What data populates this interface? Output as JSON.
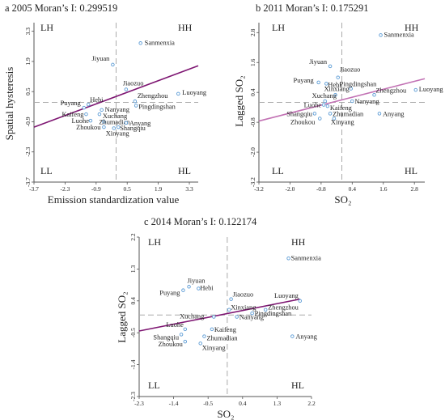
{
  "chart_data": [
    {
      "type": "scatter",
      "title": "a 2005  Moran’s I: 0.299519",
      "xlabel": "Emission standardization value",
      "ylabel": "Spatial hysteresis",
      "xlim": [
        -3.7,
        3.7
      ],
      "ylim": [
        -3.7,
        3.7
      ],
      "xticks": [
        "-3.7",
        "-2.3",
        "-0.9",
        "0.5",
        "1.9",
        "3.3"
      ],
      "yticks": [
        "3.3",
        "1.9",
        "0.5",
        "-0.9",
        "-2.3",
        "-3.7"
      ],
      "quadrants": {
        "top_left": "LH",
        "top_right": "HH",
        "bottom_left": "LL",
        "bottom_right": "HL"
      },
      "regression_line": {
        "x": [
          -3.7,
          3.7
        ],
        "y": [
          -1.15,
          1.7
        ]
      },
      "points": [
        {
          "label": "Sanmenxia",
          "x": 1.1,
          "y": 2.75
        },
        {
          "label": "Jiyuan",
          "x": -0.15,
          "y": 1.75
        },
        {
          "label": "Jiaozuo",
          "x": 0.45,
          "y": 0.6
        },
        {
          "label": "Luoyang",
          "x": 2.8,
          "y": 0.4
        },
        {
          "label": "Zhengzhou",
          "x": 0.85,
          "y": 0.05
        },
        {
          "label": "Pingdingshan",
          "x": 0.9,
          "y": -0.15
        },
        {
          "label": "Hebi",
          "x": -1.25,
          "y": -0.1
        },
        {
          "label": "Puyang",
          "x": -1.45,
          "y": -0.25
        },
        {
          "label": "Nanyang",
          "x": -0.65,
          "y": -0.35
        },
        {
          "label": "Kaifeng",
          "x": -1.35,
          "y": -0.55
        },
        {
          "label": "Xuchang",
          "x": -0.75,
          "y": -0.55
        },
        {
          "label": "Luohe",
          "x": -1.15,
          "y": -0.85
        },
        {
          "label": "Zhumadian",
          "x": -0.55,
          "y": -0.9
        },
        {
          "label": "Anyang",
          "x": 0.45,
          "y": -0.95
        },
        {
          "label": "Zhoukou",
          "x": -0.55,
          "y": -1.15
        },
        {
          "label": "Shangqiu",
          "x": 0.1,
          "y": -1.15
        },
        {
          "label": "Xinyang",
          "x": -0.1,
          "y": -1.2
        }
      ]
    },
    {
      "type": "scatter",
      "title": "b 2011  Moran’s I: 0.175291",
      "xlabel": "SO₂",
      "ylabel": "Lagged SO₂",
      "xlim": [
        -3.2,
        3.2
      ],
      "ylim": [
        -3.2,
        3.2
      ],
      "xticks": [
        "-3.2",
        "-2.0",
        "-0.8",
        "0.4",
        "1.6",
        "2.8"
      ],
      "yticks": [
        "2.8",
        "1.6",
        "0.4",
        "-0.8",
        "-2.0",
        "-3.2"
      ],
      "quadrants": {
        "top_left": "LH",
        "top_right": "HH",
        "bottom_left": "LL",
        "bottom_right": "HL"
      },
      "regression_line": {
        "x": [
          -3.2,
          3.2
        ],
        "y": [
          -0.75,
          0.95
        ]
      },
      "points": [
        {
          "label": "Sanmenxia",
          "x": 1.5,
          "y": 2.7
        },
        {
          "label": "Jiyuan",
          "x": -0.45,
          "y": 1.45
        },
        {
          "label": "Jiaozuo",
          "x": -0.15,
          "y": 1.0
        },
        {
          "label": "Puyang",
          "x": -0.9,
          "y": 0.8
        },
        {
          "label": "Hebi",
          "x": -0.6,
          "y": 0.75
        },
        {
          "label": "Pingdingshan",
          "x": 0.35,
          "y": 0.55
        },
        {
          "label": "Luoyang",
          "x": 2.85,
          "y": 0.5
        },
        {
          "label": "Zhengzhou",
          "x": 1.25,
          "y": 0.3
        },
        {
          "label": "Xinxiang",
          "x": -0.25,
          "y": 0.3
        },
        {
          "label": "Xuchang",
          "x": -0.65,
          "y": 0.05
        },
        {
          "label": "Nanyang",
          "x": 0.4,
          "y": 0.05
        },
        {
          "label": "Luohe",
          "x": -0.7,
          "y": -0.1
        },
        {
          "label": "Kaifeng",
          "x": -0.55,
          "y": -0.15
        },
        {
          "label": "Shangqiu",
          "x": -1.05,
          "y": -0.45
        },
        {
          "label": "Zhumadian",
          "x": -0.45,
          "y": -0.45
        },
        {
          "label": "Anyang",
          "x": 1.45,
          "y": -0.45
        },
        {
          "label": "Zhoukou",
          "x": -0.85,
          "y": -0.65
        },
        {
          "label": "Xinyang",
          "x": -0.3,
          "y": -0.65
        }
      ]
    },
    {
      "type": "scatter",
      "title": "c 2014  Moran’s I: 0.122174",
      "xlabel": "SO₂",
      "ylabel": "Lagged SO₂",
      "xlim": [
        -2.3,
        2.2
      ],
      "ylim": [
        -2.3,
        2.2
      ],
      "xticks": [
        "-2.3",
        "-1.4",
        "-0.5",
        "0.4",
        "1.3",
        "2.2"
      ],
      "yticks": [
        "2.2",
        "1.3",
        "0.4",
        "-0.5",
        "-1.4",
        "-2.3"
      ],
      "quadrants": {
        "top_left": "LH",
        "top_right": "HH",
        "bottom_left": "LL",
        "bottom_right": "HL"
      },
      "regression_line": {
        "x": [
          -2.3,
          1.9
        ],
        "y": [
          -0.45,
          0.45
        ]
      },
      "points": [
        {
          "label": "Sanmenxia",
          "x": 1.6,
          "y": 1.6
        },
        {
          "label": "Jiyuan",
          "x": -1.0,
          "y": 0.8
        },
        {
          "label": "Hebi",
          "x": -0.75,
          "y": 0.75
        },
        {
          "label": "Puyang",
          "x": -1.15,
          "y": 0.7
        },
        {
          "label": "Jiaozuo",
          "x": 0.1,
          "y": 0.45
        },
        {
          "label": "Luoyang",
          "x": 1.9,
          "y": 0.4
        },
        {
          "label": "Xinxiang",
          "x": 0.05,
          "y": 0.15
        },
        {
          "label": "Zhengzhou",
          "x": 1.0,
          "y": 0.15
        },
        {
          "label": "Pingdingshan",
          "x": 0.65,
          "y": 0.05
        },
        {
          "label": "Xuchang",
          "x": -0.35,
          "y": -0.05
        },
        {
          "label": "Nanyang",
          "x": 0.25,
          "y": -0.05
        },
        {
          "label": "Luohe",
          "x": -1.1,
          "y": -0.4
        },
        {
          "label": "Kaifeng",
          "x": -0.4,
          "y": -0.4
        },
        {
          "label": "Shangqiu",
          "x": -1.2,
          "y": -0.55
        },
        {
          "label": "Zhumadian",
          "x": -0.6,
          "y": -0.6
        },
        {
          "label": "Anyang",
          "x": 1.7,
          "y": -0.6
        },
        {
          "label": "Zhoukou",
          "x": -1.1,
          "y": -0.75
        },
        {
          "label": "Xinyang",
          "x": -0.7,
          "y": -0.8
        }
      ]
    }
  ],
  "colors": {
    "regression_line": "#8a1a78",
    "regression_line_light": "#c778b8",
    "point": "#5b9bd5",
    "axis": "#555555",
    "dashed": "#a8a8a8"
  }
}
